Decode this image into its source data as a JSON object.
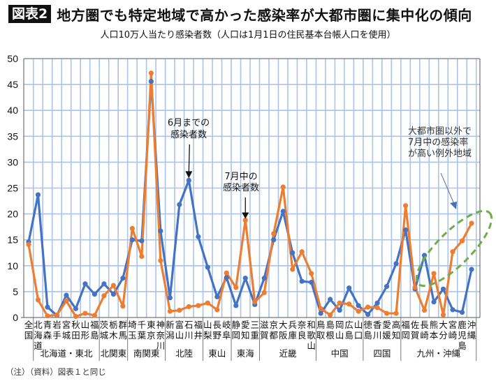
{
  "header": {
    "figure_badge": "図表2",
    "title": "地方圏でも特定地域で高かった感染率が大都市圏に集中化の傾向"
  },
  "footnote": "（注）（資料）図表１と同じ",
  "colors": {
    "series_june": "#4472C4",
    "series_july": "#ED7D31",
    "grid": "#A9C4E8",
    "highlight_ellipse": "#70AD47",
    "annotation_arrow": "#4A6FB5"
  },
  "chart_data": {
    "type": "line",
    "title": "人口10万人当たり感染者数（人口は1月1日の住民基本台帳人口を使用）",
    "xlabel": "",
    "ylabel": "",
    "ylim": [
      0,
      50
    ],
    "yticks": [
      0,
      5,
      10,
      15,
      20,
      25,
      30,
      35,
      40,
      45,
      50
    ],
    "grid": true,
    "categories": [
      "全国",
      "北海道",
      "青森",
      "岩手",
      "宮城",
      "秋田",
      "山形",
      "福島",
      "茨城",
      "栃木",
      "群馬",
      "埼玉",
      "千葉",
      "東京",
      "神奈川",
      "新潟",
      "富山",
      "石川",
      "福井",
      "山梨",
      "長野",
      "岐阜",
      "静岡",
      "愛知",
      "三重",
      "滋賀",
      "京都",
      "大阪",
      "兵庫",
      "奈良",
      "和歌山",
      "鳥取",
      "島根",
      "岡山",
      "広島",
      "山口",
      "徳島",
      "香川",
      "愛媛",
      "高知",
      "福岡",
      "佐賀",
      "長崎",
      "熊本",
      "大分",
      "宮崎",
      "鹿児島",
      "沖縄"
    ],
    "series": [
      {
        "name": "6月までの感染者数",
        "values": [
          14.6,
          23.7,
          2.0,
          0.4,
          4.3,
          1.7,
          6.5,
          4.5,
          6.5,
          4.5,
          7.6,
          15.0,
          14.8,
          45.6,
          16.7,
          3.8,
          21.8,
          26.5,
          15.6,
          9.7,
          4.0,
          7.7,
          2.3,
          7.6,
          2.5,
          7.6,
          15.0,
          20.5,
          12.5,
          7.0,
          6.8,
          0.8,
          3.5,
          1.4,
          5.7,
          2.3,
          0.6,
          2.8,
          6.0,
          10.4,
          16.9,
          5.5,
          12.0,
          3.0,
          5.5,
          1.5,
          1.0,
          9.3
        ]
      },
      {
        "name": "7月中の感染者数",
        "values": [
          14.1,
          3.4,
          0.3,
          0.5,
          3.2,
          0.2,
          0.8,
          0.4,
          4.2,
          6.2,
          2.2,
          17.2,
          11.8,
          47.2,
          11.0,
          1.2,
          1.4,
          2.1,
          2.3,
          2.8,
          1.5,
          8.6,
          5.8,
          18.8,
          3.0,
          4.8,
          16.2,
          25.2,
          9.3,
          12.7,
          8.5,
          1.7,
          0.5,
          2.8,
          2.6,
          1.2,
          2.0,
          1.9,
          0.8,
          0.8,
          21.6,
          5.8,
          1.4,
          8.5,
          0.5,
          12.7,
          14.8,
          18.2
        ]
      }
    ],
    "region_groups": [
      {
        "label": "北海道・東北",
        "start": 1,
        "end": 7
      },
      {
        "label": "北関東",
        "start": 8,
        "end": 10
      },
      {
        "label": "南関東",
        "start": 11,
        "end": 14
      },
      {
        "label": "北陸",
        "start": 15,
        "end": 18
      },
      {
        "label": "東山",
        "start": 19,
        "end": 21
      },
      {
        "label": "東海",
        "start": 22,
        "end": 24
      },
      {
        "label": "近畿",
        "start": 25,
        "end": 30
      },
      {
        "label": "中国",
        "start": 31,
        "end": 35
      },
      {
        "label": "四国",
        "start": 36,
        "end": 39
      },
      {
        "label": "九州・沖縄",
        "start": 40,
        "end": 47
      }
    ],
    "annotations": [
      {
        "id": "june",
        "lines": [
          "6月までの",
          "感染者数"
        ],
        "points_to_index": 17,
        "series": 0
      },
      {
        "id": "july",
        "lines": [
          "7月中の",
          "感染者数"
        ],
        "points_to_index": 23,
        "series": 1
      },
      {
        "id": "exception",
        "lines": [
          "大都市圏以外で",
          "7月中の感染率",
          "が高い例外地域"
        ],
        "highlight_range": [
          41,
          47
        ]
      }
    ]
  }
}
